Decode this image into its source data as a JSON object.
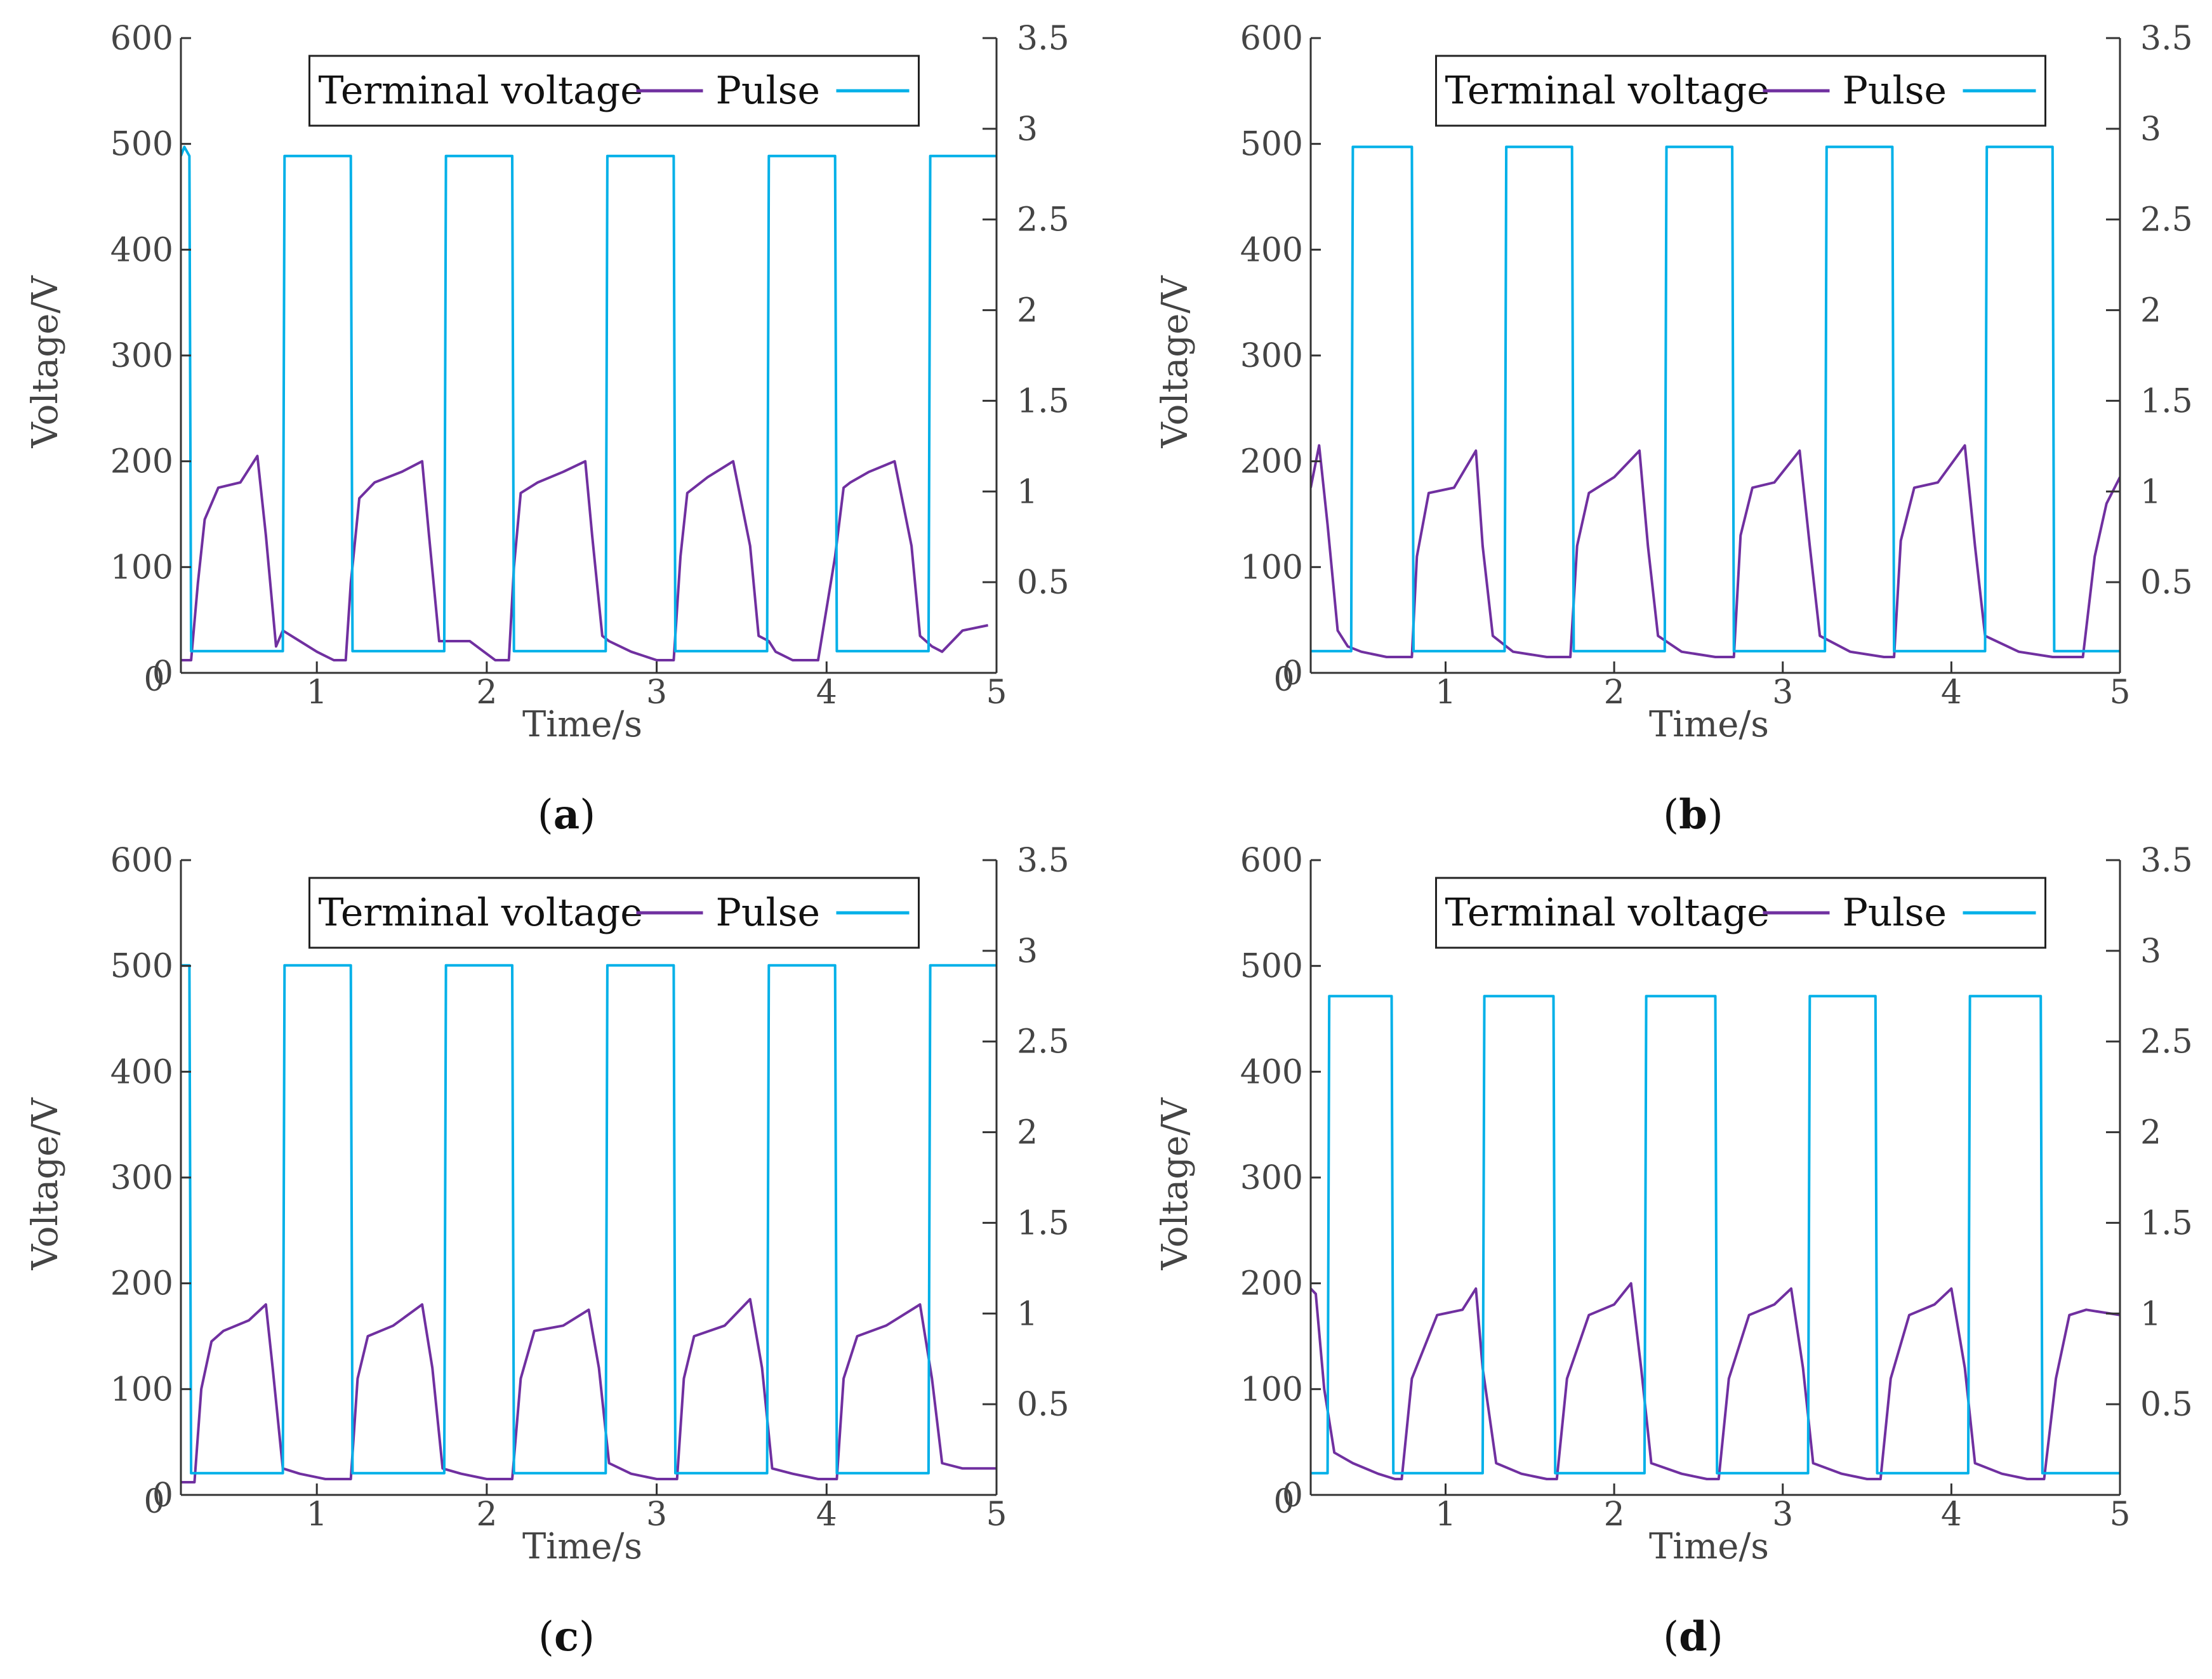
{
  "chart_data": [
    {
      "panel": "(a)",
      "label_letter": "a",
      "type": "line",
      "xlabel": "Time/s",
      "ylabel": "Voltage/V",
      "ylabel_right": "",
      "xlim": [
        0.2,
        5
      ],
      "ylim": [
        0,
        600
      ],
      "ylim_right": [
        0,
        3.5
      ],
      "xticks": [
        1,
        2,
        3,
        4,
        5
      ],
      "yticks": [
        0,
        100,
        200,
        300,
        400,
        500,
        600
      ],
      "yticks_right": [
        0.5,
        1,
        1.5,
        2,
        2.5,
        3,
        3.5
      ],
      "legend": [
        "Terminal voltage",
        "Pulse"
      ],
      "legend_position": "top-center",
      "series": [
        {
          "name": "Terminal voltage",
          "axis": "left",
          "color": "#7030a0",
          "x": [
            0.2,
            0.26,
            0.3,
            0.34,
            0.42,
            0.55,
            0.65,
            0.7,
            0.76,
            0.8,
            0.9,
            1.0,
            1.1,
            1.17,
            1.2,
            1.25,
            1.34,
            1.5,
            1.62,
            1.66,
            1.72,
            1.76,
            1.9,
            2.05,
            2.13,
            2.16,
            2.2,
            2.3,
            2.45,
            2.58,
            2.62,
            2.68,
            2.72,
            2.85,
            3.0,
            3.1,
            3.14,
            3.18,
            3.3,
            3.45,
            3.55,
            3.6,
            3.66,
            3.7,
            3.8,
            3.95,
            4.05,
            4.1,
            4.14,
            4.25,
            4.4,
            4.5,
            4.55,
            4.62,
            4.68,
            4.8,
            4.95
          ],
          "values": [
            12,
            12,
            85,
            145,
            175,
            180,
            205,
            130,
            25,
            40,
            30,
            20,
            12,
            12,
            85,
            165,
            180,
            190,
            200,
            130,
            30,
            30,
            30,
            12,
            12,
            100,
            170,
            180,
            190,
            200,
            130,
            35,
            30,
            20,
            12,
            12,
            110,
            170,
            185,
            200,
            120,
            35,
            30,
            20,
            12,
            12,
            110,
            175,
            180,
            190,
            200,
            120,
            35,
            25,
            20,
            40,
            45
          ]
        },
        {
          "name": "Pulse",
          "axis": "right",
          "color": "#00b0e8",
          "x": [
            0.2,
            0.22,
            0.25,
            0.26,
            0.8,
            0.81,
            1.2,
            1.21,
            1.75,
            1.76,
            2.15,
            2.16,
            2.7,
            2.71,
            3.1,
            3.11,
            3.65,
            3.66,
            4.05,
            4.06,
            4.6,
            4.61,
            5
          ],
          "values": [
            2.85,
            2.9,
            2.85,
            0.12,
            0.12,
            2.85,
            2.85,
            0.12,
            0.12,
            2.85,
            2.85,
            0.12,
            0.12,
            2.85,
            2.85,
            0.12,
            0.12,
            2.85,
            2.85,
            0.12,
            0.12,
            2.85,
            2.85
          ]
        }
      ]
    },
    {
      "panel": "(b)",
      "label_letter": "b",
      "type": "line",
      "xlabel": "Time/s",
      "ylabel": "Voltage/V",
      "ylabel_right": "",
      "xlim": [
        0.2,
        5
      ],
      "ylim": [
        0,
        600
      ],
      "ylim_right": [
        0,
        3.5
      ],
      "xticks": [
        1,
        2,
        3,
        4,
        5
      ],
      "yticks": [
        0,
        100,
        200,
        300,
        400,
        500,
        600
      ],
      "yticks_right": [
        0.5,
        1,
        1.5,
        2,
        2.5,
        3,
        3.5
      ],
      "legend": [
        "Terminal voltage",
        "Pulse"
      ],
      "legend_position": "top-center",
      "series": [
        {
          "name": "Terminal voltage",
          "axis": "left",
          "color": "#7030a0",
          "x": [
            0.2,
            0.25,
            0.3,
            0.36,
            0.42,
            0.5,
            0.65,
            0.8,
            0.83,
            0.9,
            1.05,
            1.18,
            1.22,
            1.28,
            1.4,
            1.6,
            1.74,
            1.78,
            1.85,
            2.0,
            2.15,
            2.2,
            2.26,
            2.4,
            2.6,
            2.71,
            2.75,
            2.82,
            2.95,
            3.1,
            3.16,
            3.22,
            3.4,
            3.6,
            3.66,
            3.7,
            3.78,
            3.92,
            4.08,
            4.14,
            4.2,
            4.4,
            4.6,
            4.78,
            4.85,
            4.92,
            5
          ],
          "values": [
            175,
            215,
            140,
            40,
            25,
            20,
            15,
            15,
            110,
            170,
            175,
            210,
            120,
            35,
            20,
            15,
            15,
            120,
            170,
            185,
            210,
            120,
            35,
            20,
            15,
            15,
            130,
            175,
            180,
            210,
            120,
            35,
            20,
            15,
            15,
            125,
            175,
            180,
            215,
            120,
            35,
            20,
            15,
            15,
            110,
            160,
            185
          ]
        },
        {
          "name": "Pulse",
          "axis": "right",
          "color": "#00b0e8",
          "x": [
            0.2,
            0.44,
            0.45,
            0.8,
            0.81,
            1.35,
            1.36,
            1.75,
            1.76,
            2.3,
            2.31,
            2.7,
            2.71,
            3.25,
            3.26,
            3.65,
            3.66,
            4.2,
            4.21,
            4.6,
            4.61,
            5
          ],
          "values": [
            0.12,
            0.12,
            2.9,
            2.9,
            0.12,
            0.12,
            2.9,
            2.9,
            0.12,
            0.12,
            2.9,
            2.9,
            0.12,
            0.12,
            2.9,
            2.9,
            0.12,
            0.12,
            2.9,
            2.9,
            0.12,
            0.12
          ]
        }
      ]
    },
    {
      "panel": "(c)",
      "label_letter": "c",
      "type": "line",
      "xlabel": "Time/s",
      "ylabel": "Voltage/V",
      "ylabel_right": "",
      "xlim": [
        0.2,
        5
      ],
      "ylim": [
        0,
        600
      ],
      "ylim_right": [
        0,
        3.5
      ],
      "xticks": [
        1,
        2,
        3,
        4,
        5
      ],
      "yticks": [
        0,
        100,
        200,
        300,
        400,
        500,
        600
      ],
      "yticks_right": [
        0.5,
        1,
        1.5,
        2,
        2.5,
        3,
        3.5
      ],
      "legend": [
        "Terminal voltage",
        "Pulse"
      ],
      "legend_position": "top-center",
      "series": [
        {
          "name": "Terminal voltage",
          "axis": "left",
          "color": "#7030a0",
          "x": [
            0.2,
            0.28,
            0.32,
            0.38,
            0.45,
            0.6,
            0.7,
            0.74,
            0.8,
            0.9,
            1.05,
            1.2,
            1.24,
            1.3,
            1.45,
            1.62,
            1.68,
            1.74,
            1.85,
            2.0,
            2.15,
            2.2,
            2.28,
            2.45,
            2.6,
            2.66,
            2.72,
            2.85,
            3.0,
            3.12,
            3.16,
            3.22,
            3.4,
            3.55,
            3.62,
            3.68,
            3.8,
            3.95,
            4.06,
            4.1,
            4.18,
            4.35,
            4.55,
            4.62,
            4.68,
            4.8,
            5
          ],
          "values": [
            12,
            12,
            100,
            145,
            155,
            165,
            180,
            120,
            25,
            20,
            15,
            15,
            110,
            150,
            160,
            180,
            120,
            25,
            20,
            15,
            15,
            110,
            155,
            160,
            175,
            120,
            30,
            20,
            15,
            15,
            110,
            150,
            160,
            185,
            120,
            25,
            20,
            15,
            15,
            110,
            150,
            160,
            180,
            110,
            30,
            25,
            25
          ]
        },
        {
          "name": "Pulse",
          "axis": "right",
          "color": "#00b0e8",
          "x": [
            0.2,
            0.25,
            0.26,
            0.8,
            0.81,
            1.2,
            1.21,
            1.75,
            1.76,
            2.15,
            2.16,
            2.7,
            2.71,
            3.1,
            3.11,
            3.65,
            3.66,
            4.05,
            4.06,
            4.6,
            4.61,
            5
          ],
          "values": [
            2.92,
            2.92,
            0.12,
            0.12,
            2.92,
            2.92,
            0.12,
            0.12,
            2.92,
            2.92,
            0.12,
            0.12,
            2.92,
            2.92,
            0.12,
            0.12,
            2.92,
            2.92,
            0.12,
            0.12,
            2.92,
            2.92
          ]
        }
      ]
    },
    {
      "panel": "(d)",
      "label_letter": "d",
      "type": "line",
      "xlabel": "Time/s",
      "ylabel": "Voltage/V",
      "ylabel_right": "",
      "xlim": [
        0.2,
        5
      ],
      "ylim": [
        0,
        600
      ],
      "ylim_right": [
        0,
        3.5
      ],
      "xticks": [
        1,
        2,
        3,
        4,
        5
      ],
      "yticks": [
        0,
        100,
        200,
        300,
        400,
        500,
        600
      ],
      "yticks_right": [
        0.5,
        1,
        1.5,
        2,
        2.5,
        3,
        3.5
      ],
      "legend": [
        "Terminal voltage",
        "Pulse"
      ],
      "legend_position": "top-center",
      "series": [
        {
          "name": "Terminal voltage",
          "axis": "left",
          "color": "#7030a0",
          "x": [
            0.2,
            0.23,
            0.28,
            0.34,
            0.45,
            0.6,
            0.7,
            0.74,
            0.8,
            0.95,
            1.1,
            1.18,
            1.22,
            1.3,
            1.45,
            1.6,
            1.66,
            1.72,
            1.85,
            2.0,
            2.1,
            2.16,
            2.22,
            2.4,
            2.55,
            2.62,
            2.68,
            2.8,
            2.95,
            3.05,
            3.12,
            3.18,
            3.35,
            3.5,
            3.58,
            3.64,
            3.75,
            3.9,
            4.0,
            4.08,
            4.14,
            4.3,
            4.45,
            4.55,
            4.62,
            4.7,
            4.8,
            5
          ],
          "values": [
            195,
            190,
            100,
            40,
            30,
            20,
            15,
            15,
            110,
            170,
            175,
            195,
            120,
            30,
            20,
            15,
            15,
            110,
            170,
            180,
            200,
            120,
            30,
            20,
            15,
            15,
            110,
            170,
            180,
            195,
            120,
            30,
            20,
            15,
            15,
            110,
            170,
            180,
            195,
            120,
            30,
            20,
            15,
            15,
            110,
            170,
            175,
            170
          ]
        },
        {
          "name": "Pulse",
          "axis": "right",
          "color": "#00b0e8",
          "x": [
            0.2,
            0.3,
            0.31,
            0.68,
            0.69,
            1.22,
            1.23,
            1.64,
            1.65,
            2.18,
            2.19,
            2.6,
            2.61,
            3.15,
            3.16,
            3.55,
            3.56,
            4.1,
            4.11,
            4.53,
            4.54,
            5
          ],
          "values": [
            0.12,
            0.12,
            2.75,
            2.75,
            0.12,
            0.12,
            2.75,
            2.75,
            0.12,
            0.12,
            2.75,
            2.75,
            0.12,
            0.12,
            2.75,
            2.75,
            0.12,
            0.12,
            2.75,
            2.75,
            0.12,
            0.12
          ]
        }
      ]
    }
  ]
}
